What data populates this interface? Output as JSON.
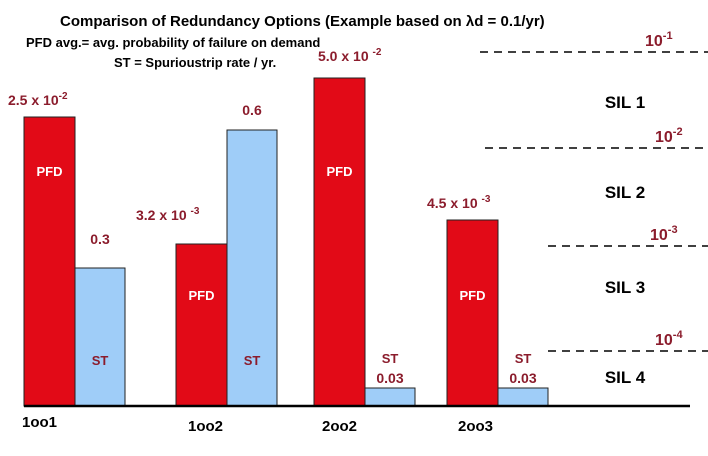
{
  "chart_data": {
    "type": "bar",
    "title": "Comparison of Redundancy Options  (Example based on λd = 0.1/yr)",
    "subtitle_lines": [
      "PFD avg.= avg. probability of failure on demand",
      "ST = Spurioustrip rate / yr."
    ],
    "categories": [
      "1oo1",
      "1oo2",
      "2oo2",
      "2oo3"
    ],
    "series": [
      {
        "name": "PFD",
        "color": "#e20a17",
        "values": [
          0.025,
          0.0032,
          0.05,
          0.0045
        ],
        "value_labels": [
          {
            "mantissa": "2.5 x 10",
            "exp": "-2"
          },
          {
            "mantissa": "3.2 x 10 ",
            "exp": "-3"
          },
          {
            "mantissa": "5.0 x 10 ",
            "exp": "-2"
          },
          {
            "mantissa": "4.5 x 10 ",
            "exp": "-3"
          }
        ]
      },
      {
        "name": "ST",
        "color": "#9fcdf8",
        "values": [
          0.3,
          0.6,
          0.03,
          0.03
        ],
        "value_labels": [
          "0.3",
          "0.6",
          "0.03",
          "0.03"
        ]
      }
    ],
    "bar_label_pfd": "PFD",
    "bar_label_st": "ST",
    "label_color": "#8b1c2c",
    "sil_levels": [
      {
        "label": "SIL 1",
        "upper": {
          "base": "10",
          "exp": "-1"
        }
      },
      {
        "label": "SIL 2",
        "upper": {
          "base": "10",
          "exp": "-2"
        }
      },
      {
        "label": "SIL 3",
        "upper": {
          "base": "10",
          "exp": "-3"
        }
      },
      {
        "label": "SIL 4",
        "upper": {
          "base": "10",
          "exp": "-4"
        }
      }
    ]
  }
}
